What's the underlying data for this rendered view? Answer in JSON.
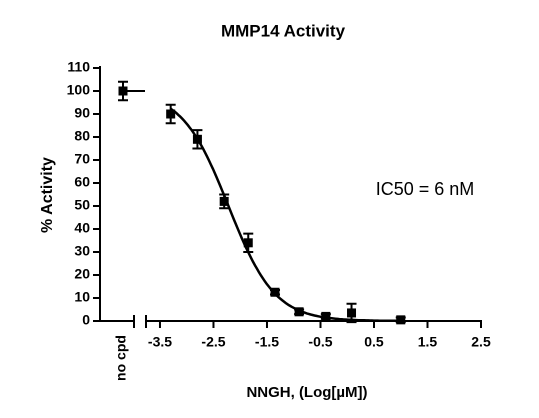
{
  "chart_data": {
    "type": "dose-response",
    "title": "MMP14 Activity",
    "x_label": "NNGH, (Log[µM])",
    "y_label": "% Activity",
    "annotation": "IC50 = 6 nM",
    "control": {
      "label": "no cpd",
      "value": 100,
      "error": 4
    },
    "series": [
      {
        "name": "MMP14",
        "color": "#000000",
        "x": [
          -3.3,
          -2.8,
          -2.3,
          -1.85,
          -1.35,
          -0.9,
          -0.4,
          0.08,
          1.0
        ],
        "values": [
          90,
          79,
          52,
          34,
          12.5,
          4,
          2,
          3.5,
          0.5
        ],
        "errors": [
          4,
          4,
          3,
          4,
          1,
          1,
          1,
          4,
          1
        ]
      }
    ],
    "fit": {
      "top": 100,
      "bottom": 0,
      "log_ic50": -2.22,
      "hill_slope": 1,
      "x_range": [
        -3.3,
        1.0
      ]
    },
    "xlim": [
      -3.75,
      2.5
    ],
    "xticks": [
      -3.5,
      -2.5,
      -1.5,
      -0.5,
      0.5,
      1.5,
      2.5
    ],
    "ylim": [
      0,
      110
    ],
    "yticks": [
      0,
      10,
      20,
      30,
      40,
      50,
      60,
      70,
      80,
      90,
      100,
      110
    ]
  }
}
